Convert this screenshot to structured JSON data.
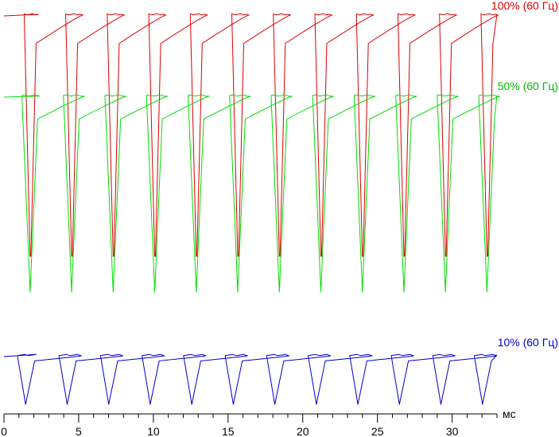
{
  "chart_data": {
    "type": "line",
    "xlabel": "мс",
    "xlim": [
      0,
      33
    ],
    "x_ticks": [
      0,
      5,
      10,
      15,
      20,
      25,
      30
    ],
    "x_minor_step": 1,
    "period_ms": 2.78,
    "series": [
      {
        "name": "100% (60 Гц)",
        "color": "#dd0000",
        "high_level": 100,
        "low_level": 0,
        "fall_start_offset_ms": 1.9,
        "fall_duration_ms": 0.4,
        "rise_start_offset_ms": 2.35,
        "rise_duration_ms": 0.35
      },
      {
        "name": "50% (60 Гц)",
        "color": "#00dd00",
        "high_level": 100,
        "low_level": 0,
        "fall_start_offset_ms": 1.75,
        "fall_duration_ms": 0.55,
        "rise_start_offset_ms": 2.3,
        "rise_duration_ms": 0.5
      },
      {
        "name": "10% (60 Гц)",
        "color": "#0000cc",
        "high_level": 100,
        "low_level": 0,
        "fall_start_offset_ms": 1.45,
        "fall_duration_ms": 0.55,
        "rise_start_offset_ms": 2.0,
        "rise_duration_ms": 0.6
      }
    ]
  }
}
